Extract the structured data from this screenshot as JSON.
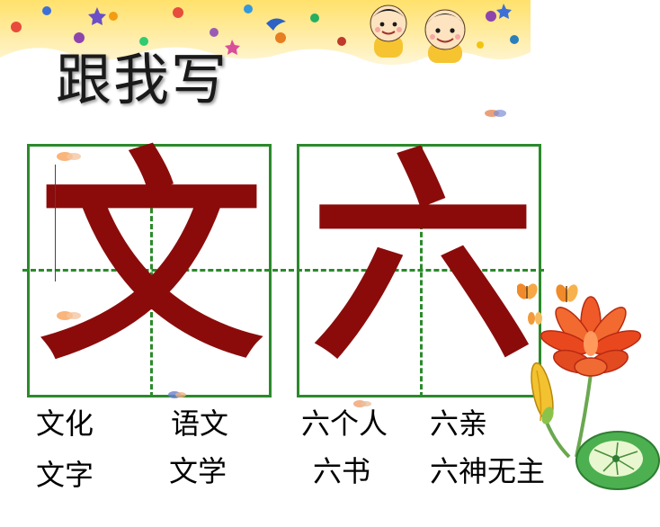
{
  "slide": {
    "title": "跟我写",
    "practice": [
      {
        "character": "文",
        "words": [
          "文化",
          "语文",
          "文字",
          "文学"
        ]
      },
      {
        "character": "六",
        "words": [
          "六个人",
          "六亲",
          "六书",
          "六神无主"
        ]
      }
    ]
  },
  "icons": {
    "banner": "cartoon-children-banner",
    "corner_art": "flower-lily-pad-butterfly",
    "sparkle": "small-flower-sparkle"
  },
  "colors": {
    "grid_line": "#2b8a2b",
    "character": "#8b0b0b",
    "word_text": "#000000",
    "title_text": "#1a1a1a"
  }
}
